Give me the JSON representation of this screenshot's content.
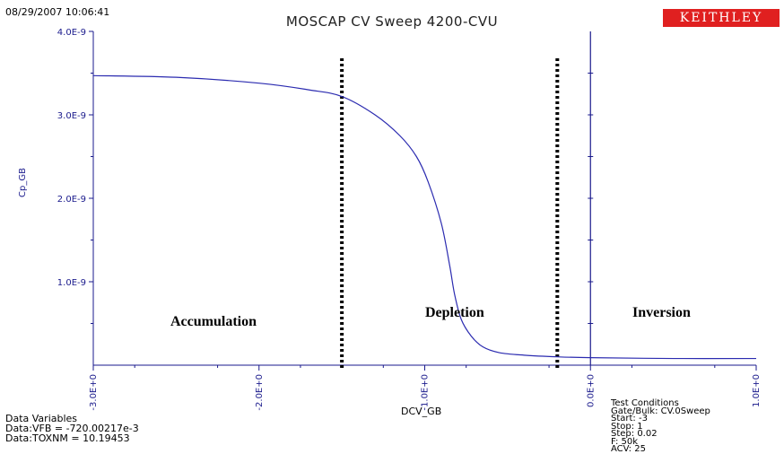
{
  "timestamp": "08/29/2007 10:06:41",
  "logo_text": "KEITHLEY",
  "colors": {
    "axis": "#1a1a8c",
    "curve": "#2b2bb0",
    "marker": "#000000",
    "logo_bg": "#e02020"
  },
  "chart_data": {
    "type": "line",
    "title": "MOSCAP CV Sweep 4200-CVU",
    "xlabel": "DCV_GB",
    "ylabel": "Cp_GB",
    "xlim": [
      -3.0,
      1.0
    ],
    "ylim": [
      0,
      4e-09
    ],
    "x_ticks": [
      -3.0,
      -2.0,
      -1.0,
      0.0,
      1.0
    ],
    "x_tick_labels": [
      "-3.0E+0",
      "-2.0E+0",
      "-1.0E+0",
      "0.0E+0",
      "1.0E+0"
    ],
    "y_ticks": [
      1e-09,
      2e-09,
      3e-09,
      4e-09
    ],
    "y_tick_labels": [
      "1.0E-9",
      "2.0E-9",
      "3.0E-9",
      "4.0E-9"
    ],
    "grid": false,
    "series": [
      {
        "name": "Cp_GB",
        "x": [
          -3.0,
          -2.5,
          -2.0,
          -1.7,
          -1.5,
          -1.3,
          -1.15,
          -1.05,
          -0.98,
          -0.9,
          -0.85,
          -0.82,
          -0.78,
          -0.72,
          -0.65,
          -0.55,
          -0.4,
          -0.2,
          0.0,
          0.5,
          1.0
        ],
        "y": [
          3.47e-09,
          3.45e-09,
          3.38e-09,
          3.3e-09,
          3.22e-09,
          3e-09,
          2.75e-09,
          2.5e-09,
          2.2e-09,
          1.7e-09,
          1.2e-09,
          8.5e-10,
          5.5e-10,
          3.5e-10,
          2.2e-10,
          1.5e-10,
          1.2e-10,
          1e-10,
          9e-11,
          8e-11,
          8e-11
        ]
      }
    ],
    "boundaries": [
      -1.5,
      -0.2
    ],
    "vertical_line_x": 0.0,
    "annotations": [
      {
        "text": "Accumulation",
        "region": "left"
      },
      {
        "text": "Depletion",
        "region": "middle"
      },
      {
        "text": "Inversion",
        "region": "right"
      }
    ]
  },
  "data_variables": {
    "header": "Data Variables",
    "lines": [
      "Data:VFB = -720.00217e-3",
      "Data:TOXNM = 10.19453"
    ]
  },
  "test_conditions": {
    "header": "Test Conditions",
    "lines": [
      "Gate/Bulk: CV.0Sweep",
      "Start: -3",
      "Stop: 1",
      "Step: 0.02",
      "F: 50k",
      "ACV: 25"
    ]
  }
}
